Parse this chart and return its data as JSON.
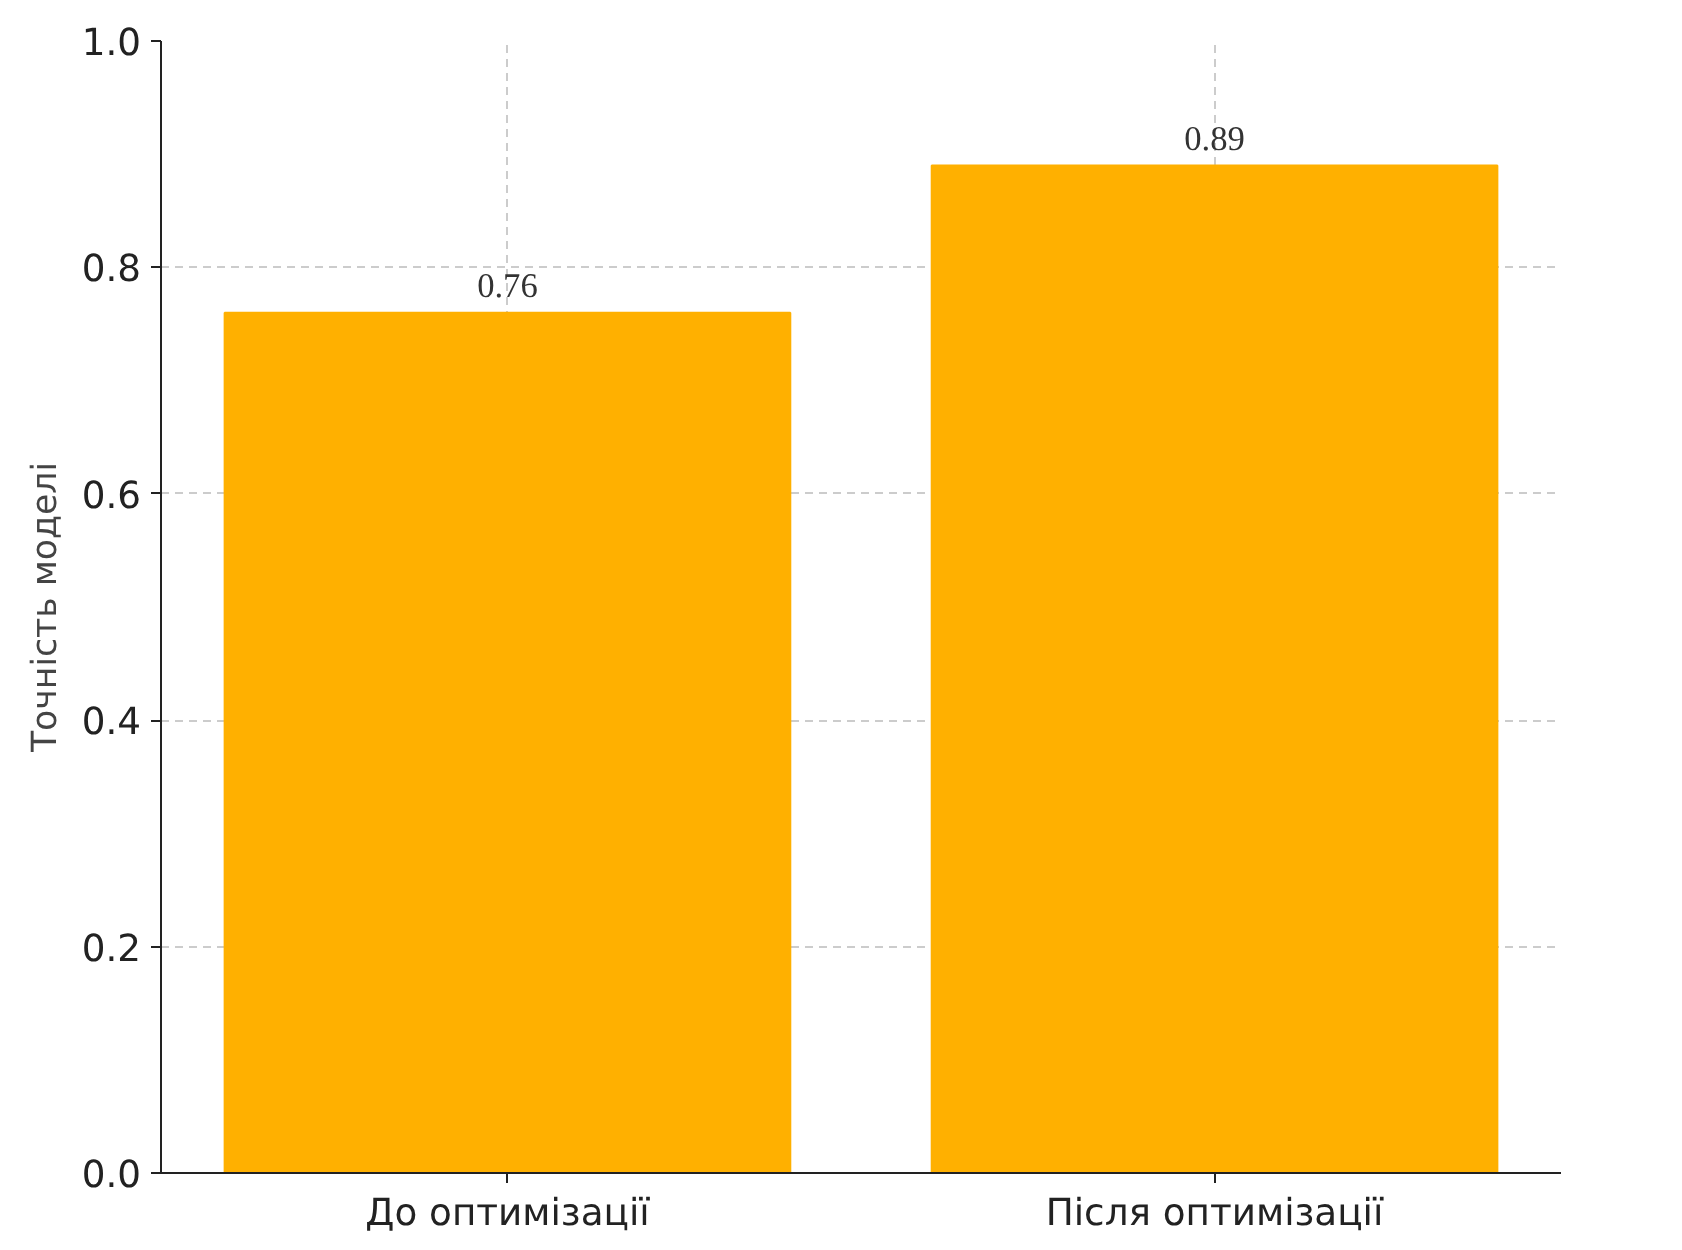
{
  "chart_data": {
    "type": "bar",
    "categories": [
      "До оптимізації",
      "Після оптимізації"
    ],
    "values": [
      0.76,
      0.89
    ],
    "color": "#ffb000",
    "ylabel": "Точність моделі",
    "ylim": [
      0,
      1.0
    ],
    "yticks": [
      {
        "value": 0,
        "label": "0.0"
      },
      {
        "value": 0.2,
        "label": "0.2"
      },
      {
        "value": 0.4,
        "label": "0.4"
      },
      {
        "value": 0.6,
        "label": "0.6"
      },
      {
        "value": 0.8,
        "label": "0.8"
      },
      {
        "value": 1.0,
        "label": "1.0"
      }
    ],
    "grid": true,
    "data_labels": true
  }
}
